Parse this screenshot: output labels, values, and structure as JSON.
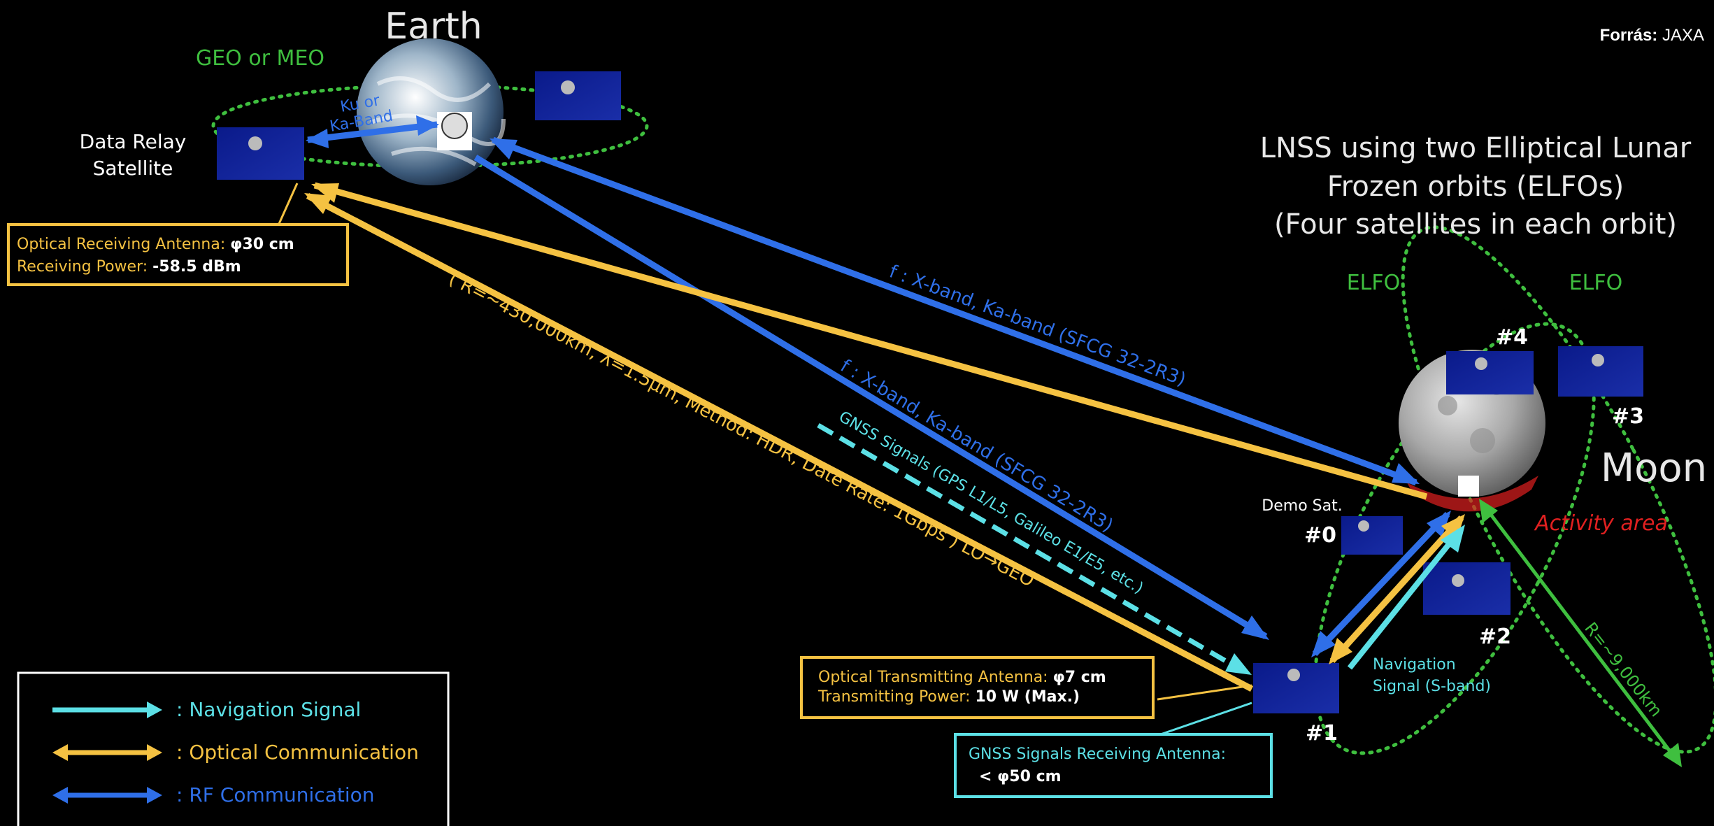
{
  "source": {
    "prefix": "Forrás:",
    "name": "JAXA"
  },
  "earth": {
    "title": "Earth",
    "orbit_label": "GEO or MEO",
    "band_line1": "Ku or",
    "band_line2": "Ka-Band"
  },
  "relay": {
    "line1": "Data Relay",
    "line2": "Satellite"
  },
  "relay_box": {
    "line1_label": "Optical Receiving Antenna:",
    "line1_value": "φ30 cm",
    "line2_label": "Receiving Power:",
    "line2_value": "-58.5 dBm"
  },
  "lnss": {
    "line1": "LNSS using two Elliptical Lunar",
    "line2": "Frozen orbits (ELFOs)",
    "line3": "(Four satellites in each orbit)"
  },
  "elfo_left": "ELFO",
  "elfo_right": "ELFO",
  "moon": {
    "label": "Moon",
    "activity": "Activity area",
    "radius": "R=~9,000km"
  },
  "sats": {
    "s0": "#0",
    "demo": "Demo Sat.",
    "s1": "#1",
    "s2": "#2",
    "s3": "#3",
    "s4": "#4"
  },
  "links": {
    "rf_upper": "f : X-band, Ka-band (SFCG 32-2R3)",
    "rf_lower": "f : X-band, Ka-band (SFCG 32-2R3)",
    "gnss": "GNSS Signals (GPS L1/L5, Galileo E1/E5, etc.)",
    "optical": "( R=~430,000km, λ=1.5μm, Method: HDR, Date Rate: 1Gbps ) LO→GEO",
    "nav_line1": "Navigation",
    "nav_line2": "Signal (S-band)"
  },
  "tx_box": {
    "line1_label": "Optical Transmitting Antenna:",
    "line1_value": "φ7 cm",
    "line2_label": "Transmitting Power:",
    "line2_value": "10 W (Max.)"
  },
  "gnss_box": {
    "line1": "GNSS Signals Receiving Antenna:",
    "line2": "< φ50 cm"
  },
  "legend": [
    {
      "label": ": Navigation Signal",
      "color": "#5ce0e6"
    },
    {
      "label": ": Optical Communication",
      "color": "#f5c242"
    },
    {
      "label": ": RF Communication",
      "color": "#2f6fe8"
    }
  ],
  "colors": {
    "nav": "#5ce0e6",
    "optical": "#f5c242",
    "rf": "#2f6fe8",
    "orbit": "#3fbf3f",
    "activity": "#e02020"
  }
}
